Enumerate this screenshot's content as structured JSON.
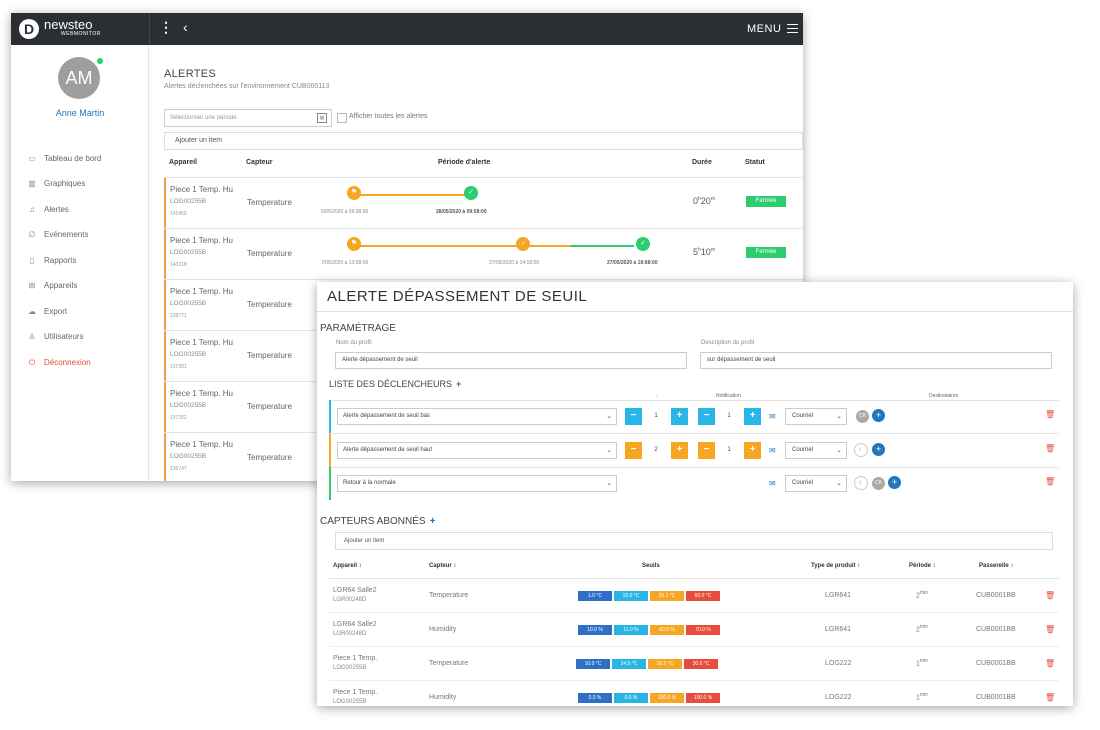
{
  "app": {
    "logo_letter": "D",
    "name": "newsteo",
    "sub": "WEBMONITOR",
    "menu_label": "MENU"
  },
  "user": {
    "initials": "AM",
    "name": "Anne Martin"
  },
  "nav": [
    {
      "label": "Tableau de bord"
    },
    {
      "label": "Graphiques"
    },
    {
      "label": "Alertes"
    },
    {
      "label": "Evénements"
    },
    {
      "label": "Rapports"
    },
    {
      "label": "Appareils"
    },
    {
      "label": "Export"
    },
    {
      "label": "Utilisateurs"
    },
    {
      "label": "Déconnexion"
    }
  ],
  "alerts": {
    "title": "ALERTES",
    "subtitle": "Alertes déclenchées sur l'environnement CUB000113",
    "period_placeholder": "Sélectionner une période",
    "show_all_label": "Afficher toutes les alertes",
    "add_item": "Ajouter un item",
    "headers": {
      "device": "Appareil",
      "sensor": "Capteur",
      "period": "Période d'alerte",
      "duration": "Durée",
      "status": "Statut"
    },
    "rows": [
      {
        "device": "Piece 1 Temp. Hu",
        "code": "LOG00255B",
        "id": "141455",
        "sensor": "Temperature",
        "t1": "5/05/2020 à 09:38:00",
        "t2": "",
        "t3": "28/05/2020 à 09:58:00",
        "dur_a": "0",
        "dur_a_unit": "h",
        "dur_b": "20",
        "dur_b_unit": "m",
        "status": "Fermée"
      },
      {
        "device": "Piece 1 Temp. Hu",
        "code": "LOG00255B",
        "id": "140318",
        "sensor": "Temperature",
        "t1": "7/05/2020 à 13:58:00",
        "t2": "27/05/2020 à 14:18:00",
        "t3": "27/05/2020 à 19:08:00",
        "dur_a": "5",
        "dur_a_unit": "h",
        "dur_b": "10",
        "dur_b_unit": "m",
        "status": "Fermée"
      },
      {
        "device": "Piece 1 Temp. Hu",
        "code": "LOG00255B",
        "id": "138771",
        "sensor": "Temperature"
      },
      {
        "device": "Piece 1 Temp. Hu",
        "code": "LOG00255B",
        "id": "137281",
        "sensor": "Temperature"
      },
      {
        "device": "Piece 1 Temp. Hu",
        "code": "LOG00255B",
        "id": "137252",
        "sensor": "Temperature"
      },
      {
        "device": "Piece 1 Temp. Hu",
        "code": "LOG00255B",
        "id": "136747",
        "sensor": "Temperature"
      }
    ]
  },
  "threshold": {
    "title": "ALERTE DÉPASSEMENT DE SEUIL",
    "params_title": "PARAMÉTRAGE",
    "profile_name_label": "Nom du profil",
    "profile_name": "Alerte dépassement de seuil",
    "profile_desc_label": "Description du profil",
    "profile_desc": "sur dépassement de seuil",
    "triggers_title": "LISTE DES DÉCLENCHEURS",
    "col_arrow": "↓",
    "col_notification": "Notification",
    "col_recipients": "Destinataires",
    "triggers": [
      {
        "label": "Alerte dépassement de seuil bas",
        "a": "1",
        "b": "1",
        "channel": "Courriel",
        "color": "#29b6e6"
      },
      {
        "label": "Alerte dépassement de seuil haut",
        "a": "2",
        "b": "1",
        "channel": "Courriel",
        "color": "#f5a623"
      },
      {
        "label": "Retour à la normale",
        "channel": "Courriel",
        "color": "#2ecc71"
      }
    ],
    "ck_label": "CK",
    "sensors_title": "CAPTEURS ABONNÉS",
    "add_item": "Ajouter un item",
    "sensor_headers": {
      "device": "Appareil",
      "sensor": "Capteur",
      "thresholds": "Seuils",
      "type": "Type de produit",
      "period": "Période",
      "gateway": "Passerelle"
    },
    "sensors": [
      {
        "device": "LGR64 Salle2",
        "code": "LGR00248D",
        "sensor": "Temperature",
        "thresholds": [
          "1.0 °C",
          "15.0 °C",
          "35.1 °C",
          "60.0 °C"
        ],
        "type": "LGR641",
        "period": "2",
        "period_unit": "min",
        "gateway": "CUB0001BB"
      },
      {
        "device": "LGR64 Salle2",
        "code": "LGR00248D",
        "sensor": "Humidity",
        "thresholds": [
          "10.0 %",
          "11.0 %",
          "60.0 %",
          "70.0 %"
        ],
        "type": "LGR641",
        "period": "2",
        "period_unit": "min",
        "gateway": "CUB0001BB"
      },
      {
        "device": "Piece 1 Temp.",
        "code": "LOG00255B",
        "sensor": "Temperature",
        "thresholds": [
          "10.0 °C",
          "24.0 °C",
          "26.0 °C",
          "30.0 °C"
        ],
        "type": "LOG222",
        "period": "1",
        "period_unit": "min",
        "gateway": "CUB0001BB"
      },
      {
        "device": "Piece 1 Temp.",
        "code": "LOG00255B",
        "sensor": "Humidity",
        "thresholds": [
          "0.0 %",
          "0.0 %",
          "100.0 %",
          "100.0 %"
        ],
        "type": "LOG222",
        "period": "1",
        "period_unit": "min",
        "gateway": "CUB0001BB"
      }
    ]
  },
  "colors": {
    "accent": "#2176bd",
    "orange": "#f5a623",
    "green": "#2ecc71",
    "cyan": "#29b6e6",
    "red": "#e74c3c",
    "darkblue": "#2f6fc7"
  }
}
